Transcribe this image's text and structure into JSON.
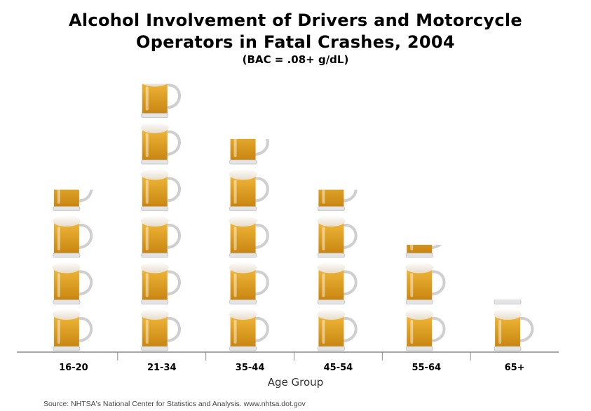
{
  "chart_data": {
    "type": "bar",
    "title_line1": "Alcohol Involvement of Drivers and Motorcycle",
    "title_line2": "Operators in Fatal Crashes, 2004",
    "subtitle": "(BAC = .08+ g/dL)",
    "xlabel": "Age Group",
    "categories": [
      "16-20",
      "21-34",
      "35-44",
      "45-54",
      "55-64",
      "65+"
    ],
    "values": [
      3.5,
      5.8,
      4.6,
      3.5,
      2.3,
      1.1
    ],
    "marker": "beer-mug"
  },
  "source": "Source: NHTSA's National Center for Statistics and Analysis.  www.nhtsa.dot.gov",
  "colors": {
    "beer_top": "#f0b83a",
    "beer_bottom": "#c7840f",
    "foam": "#f5efe3",
    "glass": "#cfcfcf",
    "axis": "#8a8a8a"
  }
}
